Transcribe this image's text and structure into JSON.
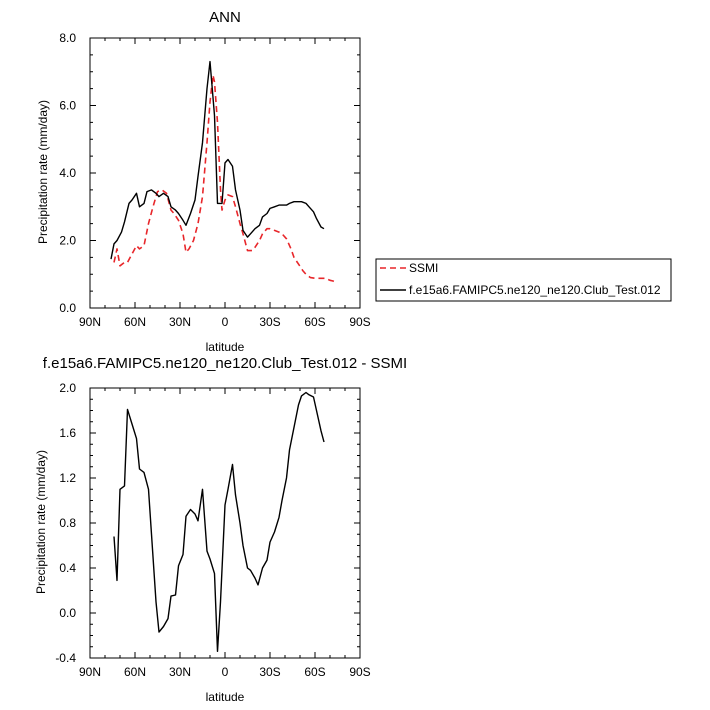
{
  "chart_data": [
    {
      "type": "line",
      "title": "ANN",
      "xlabel": "latitude",
      "ylabel": "Precipitation rate (mm/day)",
      "xlim": [
        90,
        -90
      ],
      "ylim": [
        0,
        8
      ],
      "x_ticks": [
        90,
        60,
        30,
        0,
        -30,
        -60,
        -90
      ],
      "x_tick_labels": [
        "90N",
        "60N",
        "30N",
        "0",
        "30S",
        "60S",
        "90S"
      ],
      "y_ticks": [
        0,
        2,
        4,
        6,
        8
      ],
      "y_tick_labels": [
        "0.0",
        "2.0",
        "4.0",
        "6.0",
        "8.0"
      ],
      "grid": false,
      "legend": "right",
      "series": [
        {
          "name": "SSMI",
          "color": "#e8262a",
          "style": "dashed",
          "x": [
            74,
            72,
            70,
            67,
            65,
            62,
            59,
            57,
            54,
            51,
            48,
            45,
            42,
            39,
            36,
            34,
            31,
            28,
            26,
            24,
            21,
            18,
            15,
            12,
            10,
            8,
            7,
            5,
            3,
            2,
            0,
            -2,
            -5,
            -7,
            -10,
            -12,
            -15,
            -18,
            -20,
            -23,
            -25,
            -28,
            -30,
            -33,
            -36,
            -38,
            -41,
            -44,
            -46,
            -49,
            -52,
            -54,
            -57,
            -60,
            -62,
            -65,
            -67,
            -70,
            -72,
            -74
          ],
          "values": [
            1.35,
            1.75,
            1.25,
            1.35,
            1.35,
            1.6,
            1.85,
            1.75,
            1.85,
            2.5,
            3.0,
            3.45,
            3.5,
            3.4,
            2.9,
            2.8,
            2.6,
            2.2,
            1.65,
            1.75,
            2.0,
            2.5,
            3.3,
            4.9,
            6.1,
            6.9,
            6.7,
            5.5,
            3.5,
            2.9,
            3.2,
            3.35,
            3.3,
            3.0,
            2.5,
            2.2,
            1.7,
            1.7,
            1.8,
            2.0,
            2.2,
            2.35,
            2.35,
            2.3,
            2.25,
            2.2,
            2.05,
            1.75,
            1.5,
            1.3,
            1.1,
            1.0,
            0.9,
            0.88,
            0.88,
            0.88,
            0.88,
            0.82,
            0.8,
            0.75
          ]
        },
        {
          "name": "f.e15a6.FAMIPC5.ne120_ne120.Club_Test.012",
          "color": "#000000",
          "style": "solid",
          "x": [
            76,
            74,
            72,
            69,
            67,
            64,
            62,
            59,
            57,
            54,
            52,
            49,
            46,
            44,
            41,
            38,
            36,
            33,
            31,
            28,
            26,
            23,
            20,
            18,
            15,
            12,
            10,
            7,
            5,
            2,
            0,
            -2,
            -5,
            -7,
            -10,
            -12,
            -15,
            -17,
            -20,
            -23,
            -25,
            -28,
            -30,
            -33,
            -36,
            -38,
            -41,
            -43,
            -46,
            -48,
            -51,
            -54,
            -56,
            -59,
            -61,
            -64,
            -66
          ],
          "values": [
            1.45,
            1.9,
            2.0,
            2.25,
            2.55,
            3.1,
            3.2,
            3.4,
            3.0,
            3.1,
            3.45,
            3.5,
            3.4,
            3.3,
            3.4,
            3.3,
            3.0,
            2.9,
            2.8,
            2.6,
            2.45,
            2.8,
            3.2,
            3.9,
            4.9,
            6.5,
            7.3,
            5.7,
            3.1,
            3.1,
            4.3,
            4.4,
            4.2,
            3.5,
            2.9,
            2.3,
            2.1,
            2.2,
            2.35,
            2.45,
            2.7,
            2.8,
            2.95,
            3.0,
            3.05,
            3.05,
            3.05,
            3.1,
            3.15,
            3.15,
            3.15,
            3.1,
            3.0,
            2.85,
            2.65,
            2.4,
            2.35
          ]
        }
      ]
    },
    {
      "type": "line",
      "title": "f.e15a6.FAMIPC5.ne120_ne120.Club_Test.012 - SSMI",
      "xlabel": "latitude",
      "ylabel": "Precipitation rate (mm/day)",
      "xlim": [
        90,
        -90
      ],
      "ylim": [
        -0.4,
        2.0
      ],
      "x_ticks": [
        90,
        60,
        30,
        0,
        -30,
        -60,
        -90
      ],
      "x_tick_labels": [
        "90N",
        "60N",
        "30N",
        "0",
        "30S",
        "60S",
        "90S"
      ],
      "y_ticks": [
        -0.4,
        0.0,
        0.4,
        0.8,
        1.2,
        1.6,
        2.0
      ],
      "y_tick_labels": [
        "-0.4",
        "0.0",
        "0.4",
        "0.8",
        "1.2",
        "1.6",
        "2.0"
      ],
      "grid": false,
      "series": [
        {
          "color": "#000000",
          "style": "solid",
          "x": [
            74,
            72,
            70,
            67,
            65,
            62,
            59,
            57,
            54,
            51,
            49,
            46,
            44,
            41,
            38,
            36,
            33,
            31,
            28,
            26,
            23,
            20,
            18,
            15,
            12,
            10,
            7,
            5,
            3,
            0,
            -2,
            -5,
            -7,
            -10,
            -12,
            -15,
            -17,
            -20,
            -22,
            -25,
            -28,
            -30,
            -33,
            -36,
            -38,
            -41,
            -43,
            -46,
            -49,
            -51,
            -54,
            -56,
            -59,
            -61,
            -64,
            -66
          ],
          "values": [
            0.68,
            0.29,
            1.1,
            1.13,
            1.81,
            1.68,
            1.55,
            1.28,
            1.25,
            1.1,
            0.7,
            0.1,
            -0.17,
            -0.12,
            -0.05,
            0.15,
            0.16,
            0.42,
            0.52,
            0.86,
            0.92,
            0.88,
            0.82,
            1.1,
            0.55,
            0.48,
            0.35,
            -0.34,
            0.1,
            0.96,
            1.1,
            1.32,
            1.05,
            0.8,
            0.6,
            0.4,
            0.38,
            0.31,
            0.25,
            0.4,
            0.47,
            0.63,
            0.72,
            0.85,
            1.0,
            1.2,
            1.45,
            1.65,
            1.85,
            1.93,
            1.96,
            1.94,
            1.92,
            1.8,
            1.62,
            1.52
          ]
        }
      ]
    }
  ]
}
